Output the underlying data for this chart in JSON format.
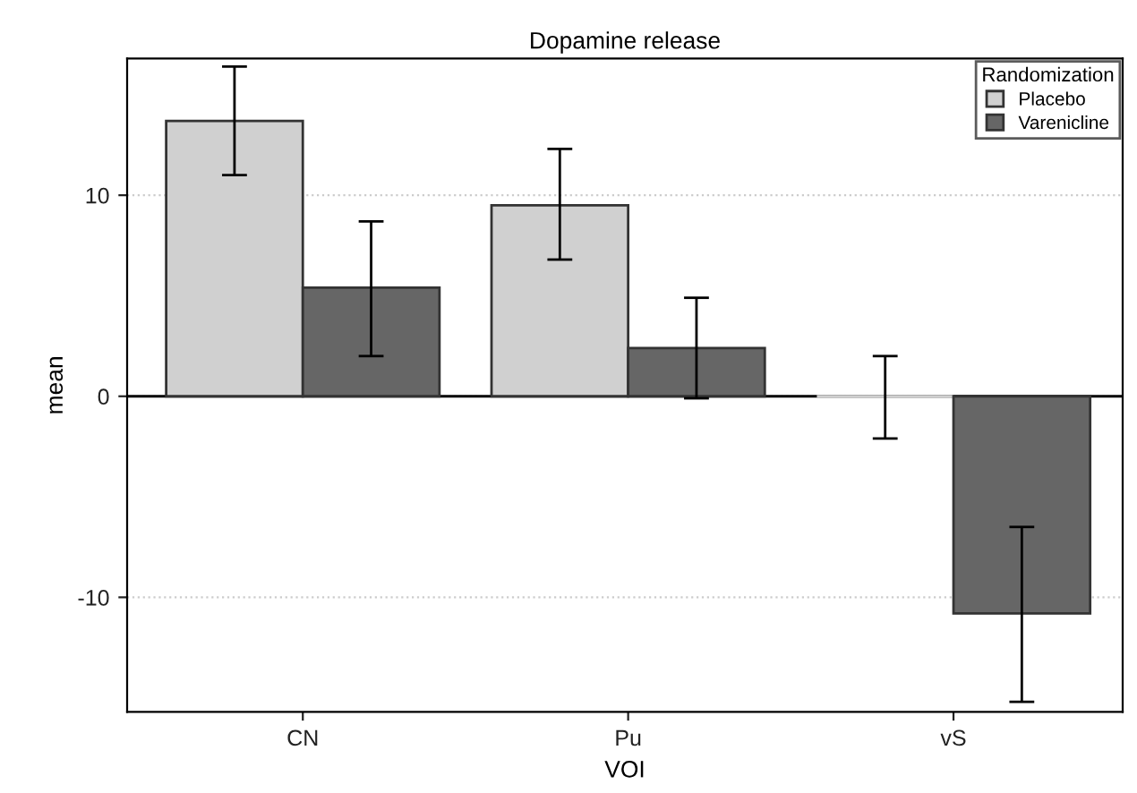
{
  "chart_data": {
    "type": "bar",
    "title": "Dopamine release",
    "xlabel": "VOI",
    "ylabel": "mean",
    "categories": [
      "CN",
      "Pu",
      "vS"
    ],
    "series": [
      {
        "name": "Placebo",
        "color": "#d0d0d0",
        "values": [
          13.7,
          9.5,
          0
        ],
        "errors": [
          [
            11.0,
            16.4
          ],
          [
            6.8,
            12.3
          ],
          [
            -2.1,
            2.0
          ]
        ]
      },
      {
        "name": "Varenicline",
        "color": "#666666",
        "values": [
          5.4,
          2.4,
          -10.8
        ],
        "errors": [
          [
            2.0,
            8.7
          ],
          [
            -0.1,
            4.9
          ],
          [
            -15.2,
            -6.5
          ]
        ]
      }
    ],
    "legend_title": "Randomization",
    "legend": "top right",
    "ylim": [
      -15.7,
      16.8
    ],
    "yticks": [
      -10,
      0,
      10
    ],
    "grid": "y",
    "ref_lines": [
      {
        "axis": "y",
        "value": 0,
        "label": null,
        "color": "#000000",
        "line_style": "solid"
      }
    ]
  }
}
